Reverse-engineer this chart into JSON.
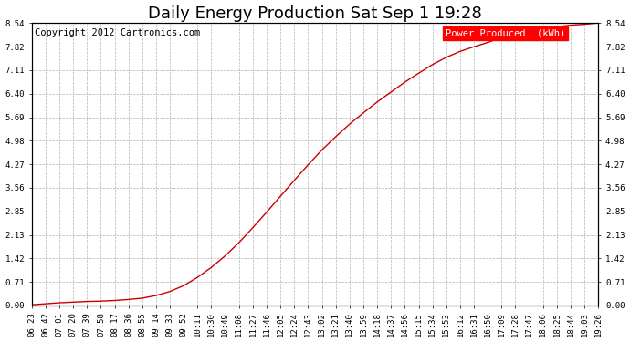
{
  "title": "Daily Energy Production Sat Sep 1 19:28",
  "copyright": "Copyright 2012 Cartronics.com",
  "legend_label": "Power Produced  (kWh)",
  "legend_bg": "#ff0000",
  "legend_text_color": "#ffffff",
  "line_color": "#cc0000",
  "bg_color": "#ffffff",
  "plot_bg_color": "#ffffff",
  "grid_color": "#b0b0b0",
  "yticks": [
    0.0,
    0.71,
    1.42,
    2.13,
    2.85,
    3.56,
    4.27,
    4.98,
    5.69,
    6.4,
    7.11,
    7.82,
    8.54
  ],
  "ymax": 8.54,
  "xtick_labels": [
    "06:23",
    "06:42",
    "07:01",
    "07:20",
    "07:39",
    "07:58",
    "08:17",
    "08:36",
    "08:55",
    "09:14",
    "09:33",
    "09:52",
    "10:11",
    "10:30",
    "10:49",
    "11:08",
    "11:27",
    "11:46",
    "12:05",
    "12:24",
    "12:43",
    "13:02",
    "13:21",
    "13:40",
    "13:59",
    "14:18",
    "14:37",
    "14:56",
    "15:15",
    "15:34",
    "15:53",
    "16:12",
    "16:31",
    "16:50",
    "17:09",
    "17:28",
    "17:47",
    "18:06",
    "18:25",
    "18:44",
    "19:03",
    "19:26"
  ],
  "title_fontsize": 13,
  "tick_fontsize": 6.5,
  "copyright_fontsize": 7.5,
  "legend_fontsize": 7.5,
  "curve_y": [
    0.02,
    0.05,
    0.08,
    0.1,
    0.12,
    0.13,
    0.15,
    0.18,
    0.22,
    0.3,
    0.42,
    0.6,
    0.85,
    1.15,
    1.5,
    1.9,
    2.35,
    2.82,
    3.3,
    3.78,
    4.25,
    4.7,
    5.1,
    5.48,
    5.82,
    6.15,
    6.45,
    6.75,
    7.02,
    7.28,
    7.5,
    7.68,
    7.82,
    7.95,
    8.1,
    8.22,
    8.32,
    8.38,
    8.43,
    8.47,
    8.5,
    8.54
  ]
}
